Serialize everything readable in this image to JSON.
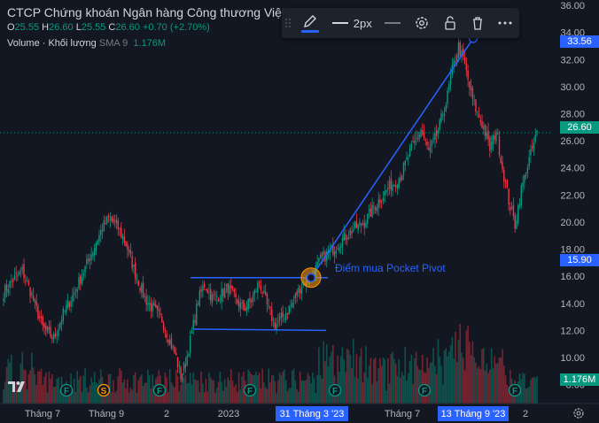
{
  "legend": {
    "title": "CTCP Chứng khoán Ngân hàng Công thương Việt",
    "o_label": "O",
    "o": "25.55",
    "h_label": "H",
    "h": "26.60",
    "l_label": "L",
    "l": "25.55",
    "c_label": "C",
    "c": "26.60",
    "change": "+0.70 (+2.70%)",
    "volume_label": "Volume · Khối lượng",
    "sma_label": "SMA 9",
    "volume_value": "1.176M"
  },
  "toolbar": {
    "width_label": "2px",
    "icons": [
      "pencil-icon",
      "line-style-icon",
      "gear-icon",
      "unlock-icon",
      "trash-icon",
      "more-icon"
    ]
  },
  "price_tags": {
    "top_point": "33.56",
    "current": "26.60",
    "pivot": "15.90",
    "volume": "1.176M"
  },
  "annotation": "Điểm mua Pocket Pivot",
  "colors": {
    "up": "#089981",
    "down": "#f23645",
    "accent": "#2962ff",
    "bg": "#131722"
  },
  "chart_data": {
    "type": "candlestick",
    "y_axis_ticks": [
      "36.00",
      "34.00",
      "32.00",
      "30.00",
      "28.00",
      "26.00",
      "24.00",
      "22.00",
      "20.00",
      "18.00",
      "16.00",
      "14.00",
      "12.00",
      "10.00",
      "8.00"
    ],
    "ylim": [
      6.6,
      36.4
    ],
    "x_axis_ticks": [
      "Tháng 7",
      "Tháng 9",
      "2",
      "2023",
      "31 Tháng 3 '23",
      "Tháng 7",
      "13 Tháng 9 '23",
      "2"
    ],
    "selected_times": [
      "31 Tháng 3 '23",
      "13 Tháng 9 '23"
    ],
    "event_markers": [
      "F",
      "S",
      "F",
      "F",
      "F",
      "F",
      "F"
    ],
    "close_anchors": [
      {
        "i": 0,
        "v": 14.8
      },
      {
        "i": 5,
        "v": 15.6
      },
      {
        "i": 12,
        "v": 16.4
      },
      {
        "i": 18,
        "v": 14.6
      },
      {
        "i": 25,
        "v": 12.2
      },
      {
        "i": 32,
        "v": 11.4
      },
      {
        "i": 38,
        "v": 13.2
      },
      {
        "i": 45,
        "v": 14.8
      },
      {
        "i": 52,
        "v": 16.6
      },
      {
        "i": 58,
        "v": 18.2
      },
      {
        "i": 63,
        "v": 19.6
      },
      {
        "i": 67,
        "v": 20.2
      },
      {
        "i": 72,
        "v": 19.8
      },
      {
        "i": 78,
        "v": 18.4
      },
      {
        "i": 84,
        "v": 16.2
      },
      {
        "i": 90,
        "v": 14.4
      },
      {
        "i": 95,
        "v": 13.6
      },
      {
        "i": 101,
        "v": 12.8
      },
      {
        "i": 106,
        "v": 11.2
      },
      {
        "i": 110,
        "v": 10.0
      },
      {
        "i": 113,
        "v": 8.6
      },
      {
        "i": 116,
        "v": 9.6
      },
      {
        "i": 120,
        "v": 11.8
      },
      {
        "i": 124,
        "v": 14.2
      },
      {
        "i": 128,
        "v": 15.4
      },
      {
        "i": 133,
        "v": 14.4
      },
      {
        "i": 138,
        "v": 14.6
      },
      {
        "i": 143,
        "v": 15.2
      },
      {
        "i": 148,
        "v": 14.2
      },
      {
        "i": 153,
        "v": 13.6
      },
      {
        "i": 158,
        "v": 14.2
      },
      {
        "i": 163,
        "v": 15.6
      },
      {
        "i": 168,
        "v": 13.8
      },
      {
        "i": 173,
        "v": 12.4
      },
      {
        "i": 178,
        "v": 13.0
      },
      {
        "i": 184,
        "v": 14.0
      },
      {
        "i": 190,
        "v": 15.4
      },
      {
        "i": 196,
        "v": 15.9
      },
      {
        "i": 202,
        "v": 17.2
      },
      {
        "i": 208,
        "v": 17.8
      },
      {
        "i": 215,
        "v": 18.6
      },
      {
        "i": 222,
        "v": 19.4
      },
      {
        "i": 230,
        "v": 20.0
      },
      {
        "i": 238,
        "v": 21.4
      },
      {
        "i": 246,
        "v": 22.6
      },
      {
        "i": 253,
        "v": 23.4
      },
      {
        "i": 260,
        "v": 25.4
      },
      {
        "i": 266,
        "v": 26.8
      },
      {
        "i": 271,
        "v": 25.2
      },
      {
        "i": 276,
        "v": 26.4
      },
      {
        "i": 282,
        "v": 28.8
      },
      {
        "i": 286,
        "v": 31.2
      },
      {
        "i": 290,
        "v": 33.0
      },
      {
        "i": 294,
        "v": 31.6
      },
      {
        "i": 298,
        "v": 29.4
      },
      {
        "i": 302,
        "v": 28.0
      },
      {
        "i": 306,
        "v": 27.0
      },
      {
        "i": 310,
        "v": 25.4
      },
      {
        "i": 314,
        "v": 26.8
      },
      {
        "i": 318,
        "v": 24.0
      },
      {
        "i": 322,
        "v": 21.6
      },
      {
        "i": 326,
        "v": 19.8
      },
      {
        "i": 330,
        "v": 22.4
      },
      {
        "i": 335,
        "v": 24.6
      },
      {
        "i": 340,
        "v": 26.6
      }
    ],
    "candle_count": 341,
    "drawings": {
      "pivot_point": 15.9,
      "top_point": 33.56,
      "base_upper": 15.9,
      "base_lower": 12.1
    }
  }
}
